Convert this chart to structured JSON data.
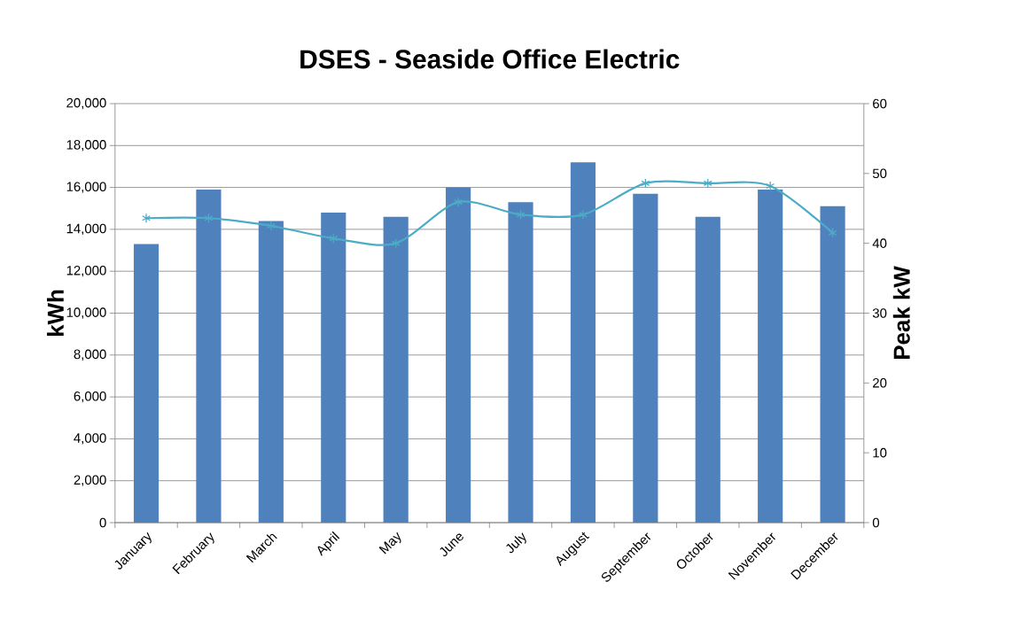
{
  "chart_data": {
    "type": "bar",
    "title": "DSES - Seaside Office Electric",
    "ylabel": "kWh",
    "y2label": "Peak kW",
    "categories": [
      "January",
      "February",
      "March",
      "April",
      "May",
      "June",
      "July",
      "August",
      "September",
      "October",
      "November",
      "December"
    ],
    "series": [
      {
        "color": "#4f81bd",
        "values": [
          13300,
          15900,
          14400,
          14800,
          14600,
          16000,
          15300,
          17200,
          15700,
          14600,
          15900,
          15100
        ]
      },
      {
        "type": "line",
        "axis": "y2",
        "color": "#4bacc6",
        "marker": "cross",
        "line_style": "solid",
        "values": [
          43.6,
          43.6,
          42.5,
          40.7,
          40.0,
          45.9,
          44.1,
          44.1,
          48.6,
          48.6,
          48.2,
          41.5
        ]
      }
    ],
    "ylim": [
      0,
      20000
    ],
    "yticks": [
      {
        "value": 0,
        "label": "0"
      },
      {
        "value": 2000,
        "label": "2,000"
      },
      {
        "value": 4000,
        "label": "4,000"
      },
      {
        "value": 6000,
        "label": "6,000"
      },
      {
        "value": 8000,
        "label": "8,000"
      },
      {
        "value": 10000,
        "label": "10,000"
      },
      {
        "value": 12000,
        "label": "12,000"
      },
      {
        "value": 14000,
        "label": "14,000"
      },
      {
        "value": 16000,
        "label": "16,000"
      },
      {
        "value": 18000,
        "label": "18,000"
      },
      {
        "value": 20000,
        "label": "20,000"
      }
    ],
    "y2lim": [
      0,
      60
    ],
    "y2ticks": [
      0,
      10,
      20,
      30,
      40,
      50,
      60
    ],
    "grid": "y"
  }
}
